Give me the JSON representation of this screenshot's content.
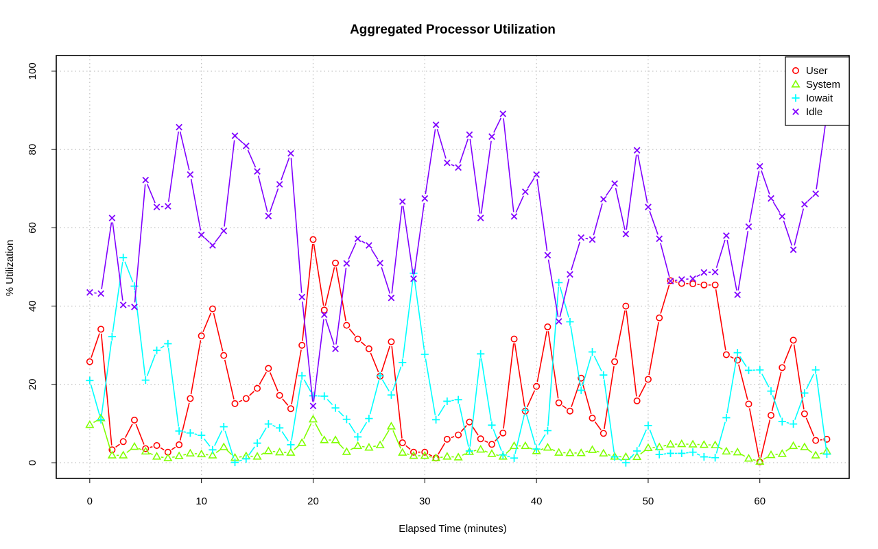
{
  "chart_data": {
    "type": "line",
    "title": "Aggregated Processor Utilization",
    "xlabel": "Elapsed Time (minutes)",
    "ylabel": "% Utilization",
    "xlim": [
      -3,
      68
    ],
    "ylim": [
      -4,
      104
    ],
    "xticks": [
      0,
      10,
      20,
      30,
      40,
      50,
      60
    ],
    "yticks": [
      0,
      20,
      40,
      60,
      80,
      100
    ],
    "grid": true,
    "legend_position": "top-right",
    "x": [
      0,
      1,
      2,
      3,
      4,
      5,
      6,
      7,
      8,
      9,
      10,
      11,
      12,
      13,
      14,
      15,
      16,
      17,
      18,
      19,
      20,
      21,
      22,
      23,
      24,
      25,
      26,
      27,
      28,
      29,
      30,
      31,
      32,
      33,
      34,
      35,
      36,
      37,
      38,
      39,
      40,
      41,
      42,
      43,
      44,
      45,
      46,
      47,
      48,
      49,
      50,
      51,
      52,
      53,
      54,
      55,
      56,
      57,
      58,
      59,
      60,
      61,
      62,
      63,
      64,
      65,
      66
    ],
    "series": [
      {
        "name": "User",
        "color": "#ff0000",
        "marker": "circle",
        "values": [
          25.8,
          34.1,
          3.3,
          5.4,
          10.9,
          3.6,
          4.4,
          2.7,
          4.6,
          16.4,
          32.4,
          39.3,
          27.4,
          15.1,
          16.4,
          19.0,
          24.1,
          17.2,
          13.8,
          30.0,
          57.0,
          39.0,
          51.0,
          35.1,
          31.6,
          29.1,
          22.1,
          30.9,
          5.1,
          2.7,
          2.7,
          1.2,
          6.0,
          7.1,
          10.4,
          6.1,
          4.7,
          7.6,
          31.6,
          13.2,
          19.5,
          34.7,
          15.3,
          13.2,
          21.6,
          11.4,
          7.5,
          25.8,
          40.0,
          15.8,
          21.3,
          37.0,
          46.5,
          45.8,
          45.7,
          45.4,
          45.4,
          27.6,
          26.2,
          15.0,
          0.2,
          12.1,
          24.3,
          31.3,
          12.5,
          5.7,
          6.0
        ]
      },
      {
        "name": "System",
        "color": "#80ff00",
        "marker": "triangle",
        "values": [
          9.7,
          11.4,
          1.9,
          1.9,
          4.1,
          2.9,
          1.6,
          1.2,
          1.7,
          2.4,
          2.2,
          1.9,
          4.0,
          1.3,
          1.7,
          1.6,
          3.0,
          2.7,
          2.6,
          5.1,
          11.1,
          5.8,
          5.8,
          2.8,
          4.3,
          3.9,
          4.5,
          9.3,
          2.6,
          1.8,
          1.8,
          1.2,
          1.6,
          1.4,
          2.8,
          3.4,
          2.3,
          1.6,
          4.3,
          4.3,
          3.0,
          3.9,
          2.6,
          2.5,
          2.5,
          3.3,
          2.4,
          1.6,
          1.5,
          1.5,
          3.8,
          4.0,
          4.7,
          4.8,
          4.7,
          4.6,
          4.5,
          2.9,
          2.7,
          1.1,
          0.3,
          2.0,
          2.3,
          4.3,
          4.0,
          1.9,
          2.9
        ]
      },
      {
        "name": "Iowait",
        "color": "#00ffff",
        "marker": "plus",
        "values": [
          21.0,
          11.0,
          32.2,
          52.4,
          45.1,
          21.1,
          28.7,
          30.4,
          8.1,
          7.6,
          7.0,
          3.3,
          9.2,
          0.1,
          1.0,
          5.0,
          9.9,
          8.9,
          4.6,
          22.2,
          17.1,
          17.0,
          14.0,
          11.1,
          6.6,
          11.3,
          22.2,
          17.3,
          25.6,
          48.4,
          27.7,
          11.0,
          15.7,
          16.1,
          3.0,
          27.8,
          9.6,
          2.0,
          1.2,
          13.4,
          3.5,
          8.2,
          46.0,
          36.0,
          18.5,
          28.3,
          22.4,
          1.5,
          0.0,
          3.0,
          9.5,
          2.1,
          2.4,
          2.4,
          2.7,
          1.5,
          1.3,
          11.5,
          28.1,
          23.6,
          23.7,
          18.3,
          10.5,
          9.9,
          17.8,
          23.7,
          2.2
        ]
      },
      {
        "name": "Idle",
        "color": "#8000ff",
        "marker": "cross",
        "values": [
          43.5,
          43.2,
          62.5,
          40.3,
          39.8,
          72.2,
          65.3,
          65.5,
          85.7,
          73.6,
          58.2,
          55.5,
          59.2,
          83.5,
          80.9,
          74.4,
          63.0,
          71.1,
          79.0,
          42.3,
          14.5,
          37.8,
          29.1,
          50.9,
          57.2,
          55.5,
          51.0,
          42.1,
          66.7,
          47.0,
          67.5,
          86.3,
          76.6,
          75.4,
          83.8,
          62.5,
          83.3,
          89.1,
          62.9,
          69.2,
          73.6,
          53.0,
          36.1,
          48.1,
          57.5,
          57.0,
          67.3,
          71.3,
          58.4,
          79.8,
          65.3,
          57.2,
          46.4,
          46.8,
          47.0,
          48.6,
          48.7,
          58.0,
          42.9,
          60.3,
          75.7,
          67.5,
          62.9,
          54.4,
          66.0,
          68.7,
          89.0
        ]
      }
    ]
  }
}
